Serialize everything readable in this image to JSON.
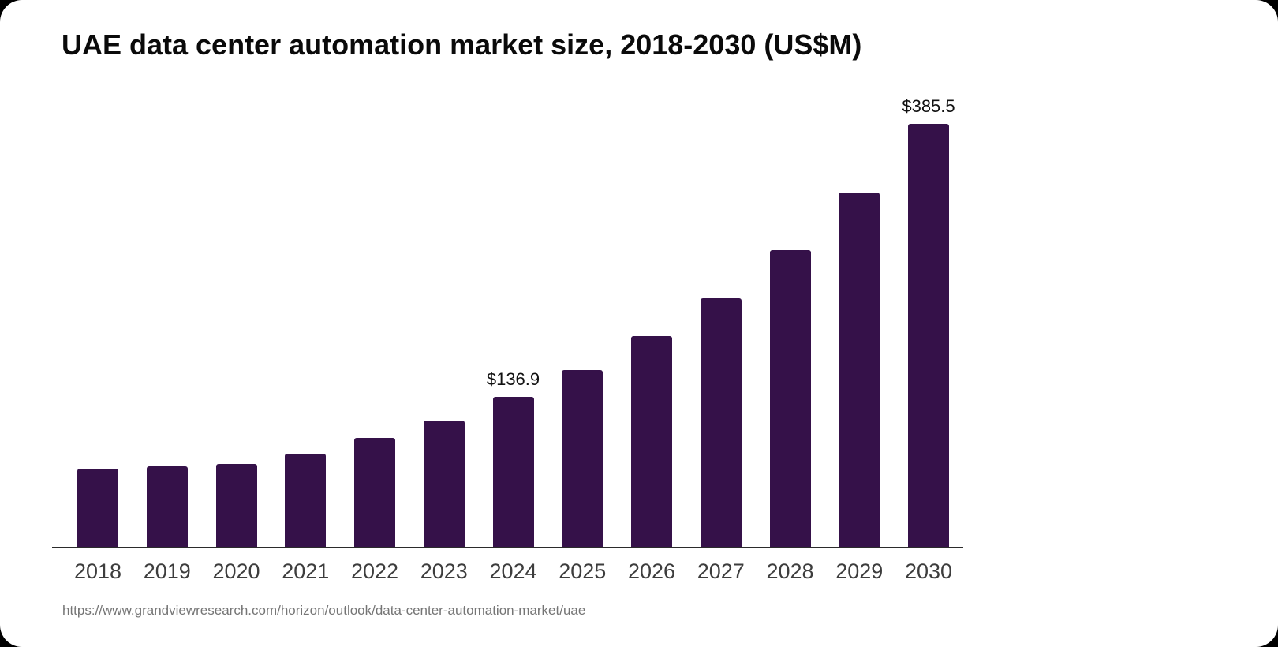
{
  "page": {
    "title": "UAE data center automation market size, 2018-2030 (US$M)",
    "source_url": "https://www.grandviewresearch.com/horizon/outlook/data-center-automation-market/uae"
  },
  "chart_data": {
    "type": "bar",
    "title": "UAE data center automation market size, 2018-2030 (US$M)",
    "unit": "US$M",
    "categories": [
      "2018",
      "2019",
      "2020",
      "2021",
      "2022",
      "2023",
      "2024",
      "2025",
      "2026",
      "2027",
      "2028",
      "2029",
      "2030"
    ],
    "values": [
      71.2,
      73.4,
      75.5,
      84.9,
      99.3,
      115.1,
      136.9,
      161.1,
      192.0,
      226.6,
      270.4,
      322.9,
      385.5
    ],
    "data_labels": {
      "2024": "$136.9",
      "2030": "$385.5"
    },
    "ylim": [
      0,
      385.5
    ],
    "grid": false,
    "legend": false,
    "bar_color": "#351149",
    "axis_color": "#2b2b2b",
    "x_label_color": "#3d3d3d",
    "value_label_color": "#111111",
    "source_color": "#757575"
  }
}
